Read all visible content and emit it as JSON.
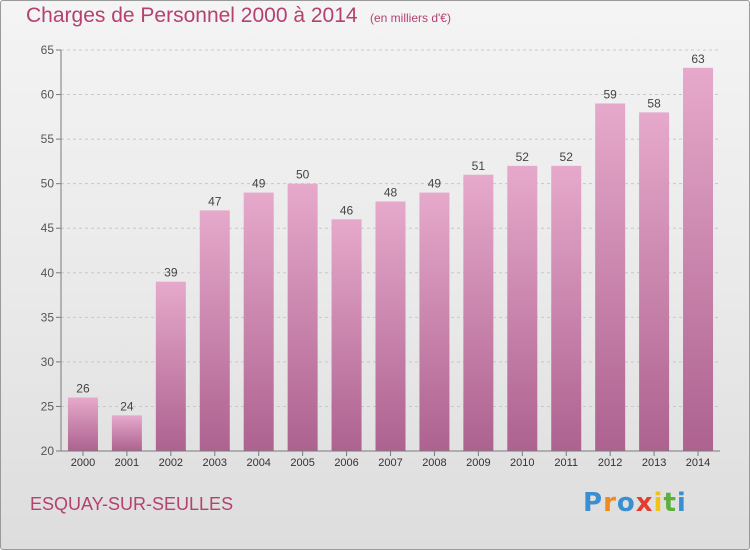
{
  "header": {
    "title": "Charges de Personnel 2000 à 2014",
    "unit": "(en milliers d'€)"
  },
  "footer": {
    "place": "ESQUAY-SUR-SEULLES",
    "logo_text": "Proxiti",
    "logo_letters": [
      {
        "char": "P",
        "color": "#3b8fd1"
      },
      {
        "char": "r",
        "color": "#f08a1c"
      },
      {
        "char": "o",
        "color": "#3b8fd1"
      },
      {
        "char": "x",
        "color": "#e63c2f"
      },
      {
        "char": "i",
        "color": "#f2c21a"
      },
      {
        "char": "t",
        "color": "#5cb03c"
      },
      {
        "char": "i",
        "color": "#3b8fd1"
      }
    ]
  },
  "colors": {
    "title": "#b4416f",
    "bar_top": "#e6a9cb",
    "bar_bottom": "#ad628f",
    "axis": "#7a7a7a",
    "gridline": "#c8c8c8"
  },
  "chart_data": {
    "type": "bar",
    "categories": [
      "2000",
      "2001",
      "2002",
      "2003",
      "2004",
      "2005",
      "2006",
      "2007",
      "2008",
      "2009",
      "2010",
      "2011",
      "2012",
      "2013",
      "2014"
    ],
    "values": [
      26,
      24,
      39,
      47,
      49,
      50,
      46,
      48,
      49,
      51,
      52,
      52,
      59,
      58,
      63
    ],
    "data_labels": [
      "26",
      "24",
      "39",
      "47",
      "49",
      "50",
      "46",
      "48",
      "49",
      "51",
      "52",
      "52",
      "59",
      "58",
      "63"
    ],
    "yticks": [
      "20",
      "25",
      "30",
      "35",
      "40",
      "45",
      "50",
      "55",
      "60",
      "65"
    ],
    "ylim": [
      20,
      65
    ],
    "grid": true
  }
}
